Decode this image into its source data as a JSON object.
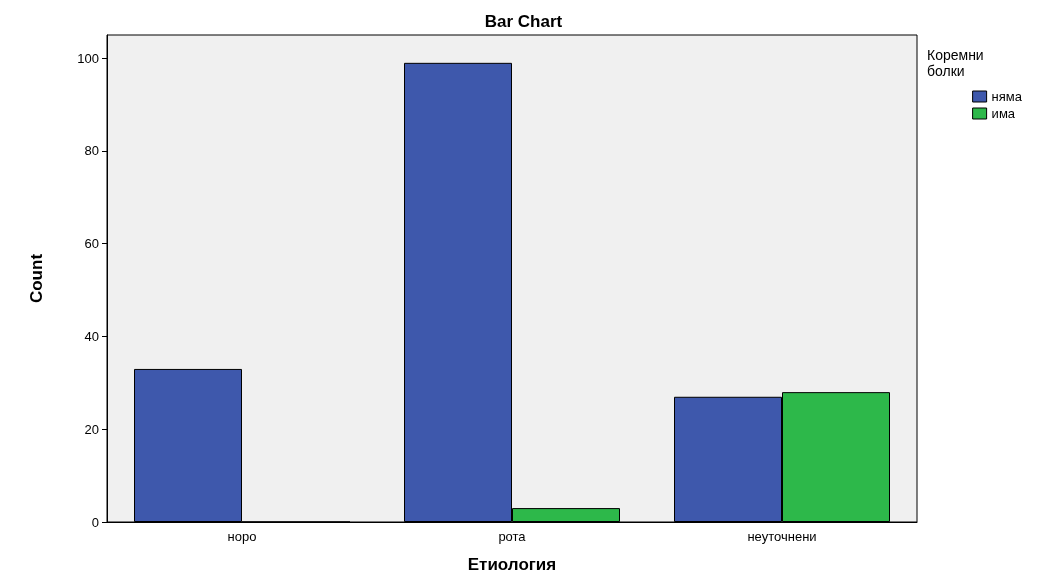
{
  "chart_data": {
    "type": "bar",
    "title": "Bar Chart",
    "xlabel": "Етиология",
    "ylabel": "Count",
    "legend_title": "Коремни болки",
    "categories": [
      "норо",
      "рота",
      "неуточнени"
    ],
    "series": [
      {
        "name": "няма",
        "color": "#3e58ac",
        "values": [
          33,
          99,
          27
        ]
      },
      {
        "name": "има",
        "color": "#2db84a",
        "values": [
          0,
          3,
          28
        ]
      }
    ],
    "ylim": [
      0,
      105
    ],
    "yticks": [
      0,
      20,
      40,
      60,
      80,
      100
    ],
    "grid": false,
    "legend": "top right"
  }
}
